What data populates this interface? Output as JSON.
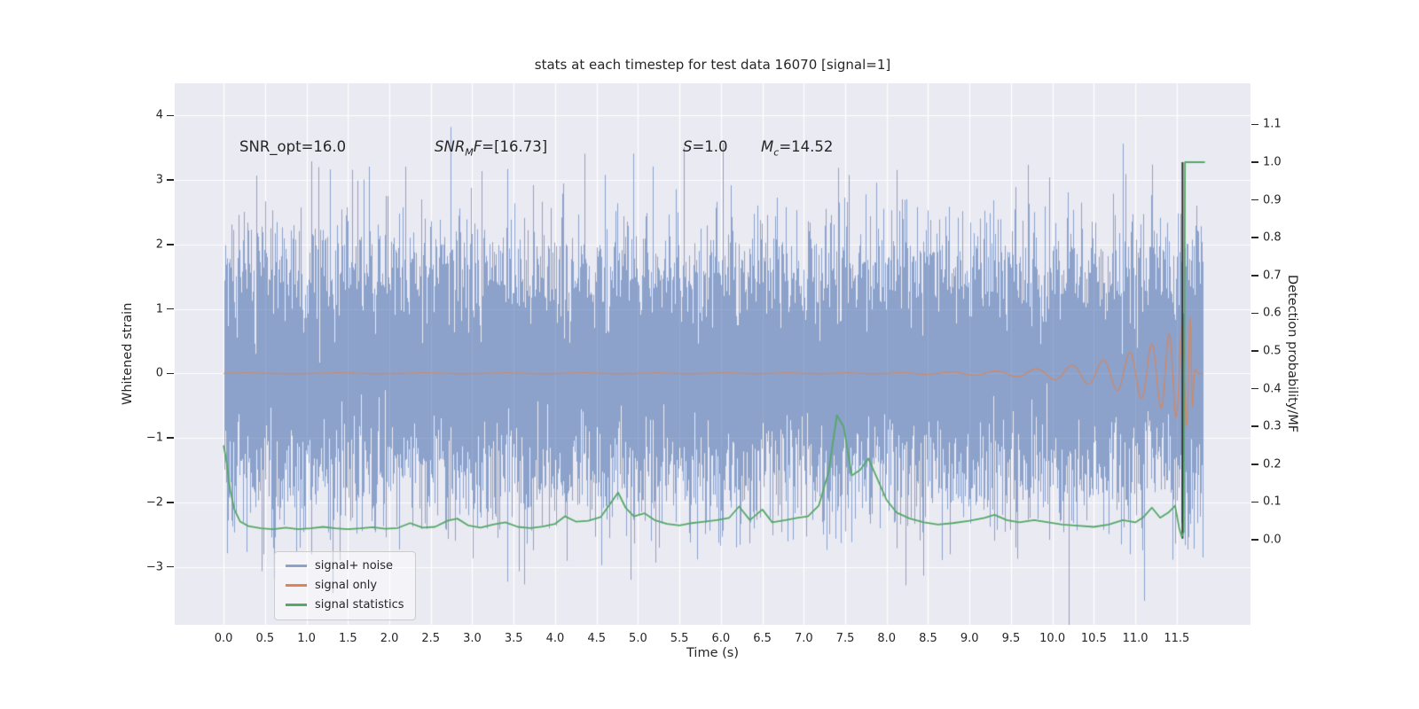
{
  "figure": {
    "title": "stats at each timestep for test data 16070 [signal=1]",
    "xlabel": "Time (s)",
    "ylabel_left": "Whitened strain",
    "ylabel_right": "Detection probability/MF"
  },
  "annotations": {
    "snr_opt": "SNR_opt=16.0",
    "snr_mf": {
      "pre": "SNR",
      "sub": "M",
      "mid": "F",
      "post": "=[16.73]"
    },
    "s": {
      "pre": "S",
      "post": "=1.0"
    },
    "mc": {
      "pre": "M",
      "sub": "c",
      "post": "=14.52"
    }
  },
  "legend": {
    "items": [
      {
        "label": "signal+ noise",
        "color": "#8ba2ca"
      },
      {
        "label": "signal only",
        "color": "#dd8452"
      },
      {
        "label": "signal statistics",
        "color": "#55a868"
      }
    ]
  },
  "chart_data": {
    "type": "line",
    "title": "stats at each timestep for test data 16070 [signal=1]",
    "xlabel": "Time (s)",
    "ylabel_left": "Whitened strain",
    "ylabel_right": "Detection probability/MF",
    "grid": true,
    "background": "#eaeaf2",
    "legend_position": "lower left",
    "xlim": [
      -0.59,
      12.39
    ],
    "ylim_left": [
      -3.9,
      4.5
    ],
    "ylim_right": [
      -0.2254,
      1.2089
    ],
    "xtick_vals": [
      0.0,
      0.5,
      1.0,
      1.5,
      2.0,
      2.5,
      3.0,
      3.5,
      4.0,
      4.5,
      5.0,
      5.5,
      6.0,
      6.5,
      7.0,
      7.5,
      8.0,
      8.5,
      9.0,
      9.5,
      10.0,
      10.5,
      11.0,
      11.5
    ],
    "xtick_labels": [
      "0.0",
      "0.5",
      "1.0",
      "1.5",
      "2.0",
      "2.5",
      "3.0",
      "3.5",
      "4.0",
      "4.5",
      "5.0",
      "5.5",
      "6.0",
      "6.5",
      "7.0",
      "7.5",
      "8.0",
      "8.5",
      "9.0",
      "9.5",
      "10.0",
      "10.5",
      "11.0",
      "11.5"
    ],
    "ytl_vals": [
      4,
      3,
      2,
      1,
      0,
      -1,
      -2,
      -3
    ],
    "ytl_labels": [
      "4",
      "3",
      "2",
      "1",
      "0",
      "−1",
      "−2",
      "−3"
    ],
    "ytr_vals": [
      1.1,
      1.0,
      0.9,
      0.8,
      0.7,
      0.6,
      0.5,
      0.4,
      0.3,
      0.2,
      0.1,
      0.0
    ],
    "ytr_labels": [
      "1.1",
      "1.0",
      "0.9",
      "0.8",
      "0.7",
      "0.6",
      "0.5",
      "0.4",
      "0.3",
      "0.2",
      "0.1",
      "0.0"
    ],
    "series": [
      {
        "name": "signal+ noise",
        "axis": "left",
        "kind": "gaussian-noise",
        "color": "#4c72b0",
        "opacity": 0.6,
        "sigma": 1.0,
        "x_range": [
          0.0,
          11.82
        ],
        "observed_max": 4.1,
        "observed_min": -3.5,
        "samples_per_pixel": 13,
        "seed": 20
      },
      {
        "name": "signal only",
        "axis": "left",
        "kind": "chirp",
        "color": "#dd8452",
        "opacity": 0.9,
        "x_range": [
          0.0,
          11.82
        ],
        "merger_time": 11.68,
        "envelope_peak": 0.88,
        "envelope_tau": 0.75,
        "ringdown_tau": 0.02,
        "freq_coeff": 3.0,
        "freq_exp": -0.5
      },
      {
        "name": "signal statistics",
        "axis": "right",
        "kind": "polyline",
        "color": "#55a868",
        "points": [
          [
            0.0,
            0.25
          ],
          [
            0.04,
            0.2
          ],
          [
            0.08,
            0.13
          ],
          [
            0.13,
            0.08
          ],
          [
            0.2,
            0.048
          ],
          [
            0.3,
            0.036
          ],
          [
            0.45,
            0.03
          ],
          [
            0.6,
            0.028
          ],
          [
            0.75,
            0.032
          ],
          [
            0.9,
            0.028
          ],
          [
            1.05,
            0.03
          ],
          [
            1.2,
            0.034
          ],
          [
            1.35,
            0.03
          ],
          [
            1.5,
            0.028
          ],
          [
            1.65,
            0.03
          ],
          [
            1.8,
            0.033
          ],
          [
            1.95,
            0.029
          ],
          [
            2.1,
            0.031
          ],
          [
            2.25,
            0.044
          ],
          [
            2.4,
            0.032
          ],
          [
            2.55,
            0.034
          ],
          [
            2.7,
            0.05
          ],
          [
            2.82,
            0.056
          ],
          [
            2.95,
            0.038
          ],
          [
            3.1,
            0.032
          ],
          [
            3.25,
            0.04
          ],
          [
            3.4,
            0.046
          ],
          [
            3.55,
            0.034
          ],
          [
            3.7,
            0.031
          ],
          [
            3.85,
            0.035
          ],
          [
            4.0,
            0.042
          ],
          [
            4.12,
            0.062
          ],
          [
            4.25,
            0.048
          ],
          [
            4.4,
            0.05
          ],
          [
            4.55,
            0.06
          ],
          [
            4.68,
            0.1
          ],
          [
            4.76,
            0.125
          ],
          [
            4.85,
            0.085
          ],
          [
            4.95,
            0.062
          ],
          [
            5.08,
            0.07
          ],
          [
            5.2,
            0.052
          ],
          [
            5.35,
            0.042
          ],
          [
            5.5,
            0.038
          ],
          [
            5.65,
            0.044
          ],
          [
            5.8,
            0.048
          ],
          [
            5.95,
            0.052
          ],
          [
            6.1,
            0.058
          ],
          [
            6.22,
            0.088
          ],
          [
            6.35,
            0.052
          ],
          [
            6.5,
            0.08
          ],
          [
            6.62,
            0.046
          ],
          [
            6.78,
            0.052
          ],
          [
            6.92,
            0.058
          ],
          [
            7.05,
            0.062
          ],
          [
            7.18,
            0.09
          ],
          [
            7.3,
            0.18
          ],
          [
            7.4,
            0.33
          ],
          [
            7.48,
            0.3
          ],
          [
            7.58,
            0.17
          ],
          [
            7.68,
            0.185
          ],
          [
            7.78,
            0.215
          ],
          [
            7.88,
            0.165
          ],
          [
            8.0,
            0.105
          ],
          [
            8.12,
            0.072
          ],
          [
            8.28,
            0.056
          ],
          [
            8.45,
            0.046
          ],
          [
            8.62,
            0.04
          ],
          [
            8.8,
            0.044
          ],
          [
            9.0,
            0.05
          ],
          [
            9.18,
            0.058
          ],
          [
            9.3,
            0.066
          ],
          [
            9.45,
            0.052
          ],
          [
            9.6,
            0.046
          ],
          [
            9.78,
            0.052
          ],
          [
            9.95,
            0.046
          ],
          [
            10.12,
            0.04
          ],
          [
            10.3,
            0.037
          ],
          [
            10.5,
            0.034
          ],
          [
            10.68,
            0.04
          ],
          [
            10.85,
            0.052
          ],
          [
            11.0,
            0.046
          ],
          [
            11.1,
            0.06
          ],
          [
            11.2,
            0.085
          ],
          [
            11.3,
            0.058
          ],
          [
            11.4,
            0.072
          ],
          [
            11.48,
            0.09
          ],
          [
            11.53,
            0.03
          ],
          [
            11.56,
            0.008
          ],
          [
            11.585,
            0.02
          ],
          [
            11.6,
            1.0
          ],
          [
            11.84,
            1.0
          ]
        ]
      },
      {
        "name": "detection marker",
        "axis": "right",
        "kind": "vline",
        "color": "#2f2f2f",
        "x": 11.57,
        "y_range": [
          0.003,
          1.0
        ]
      }
    ]
  }
}
